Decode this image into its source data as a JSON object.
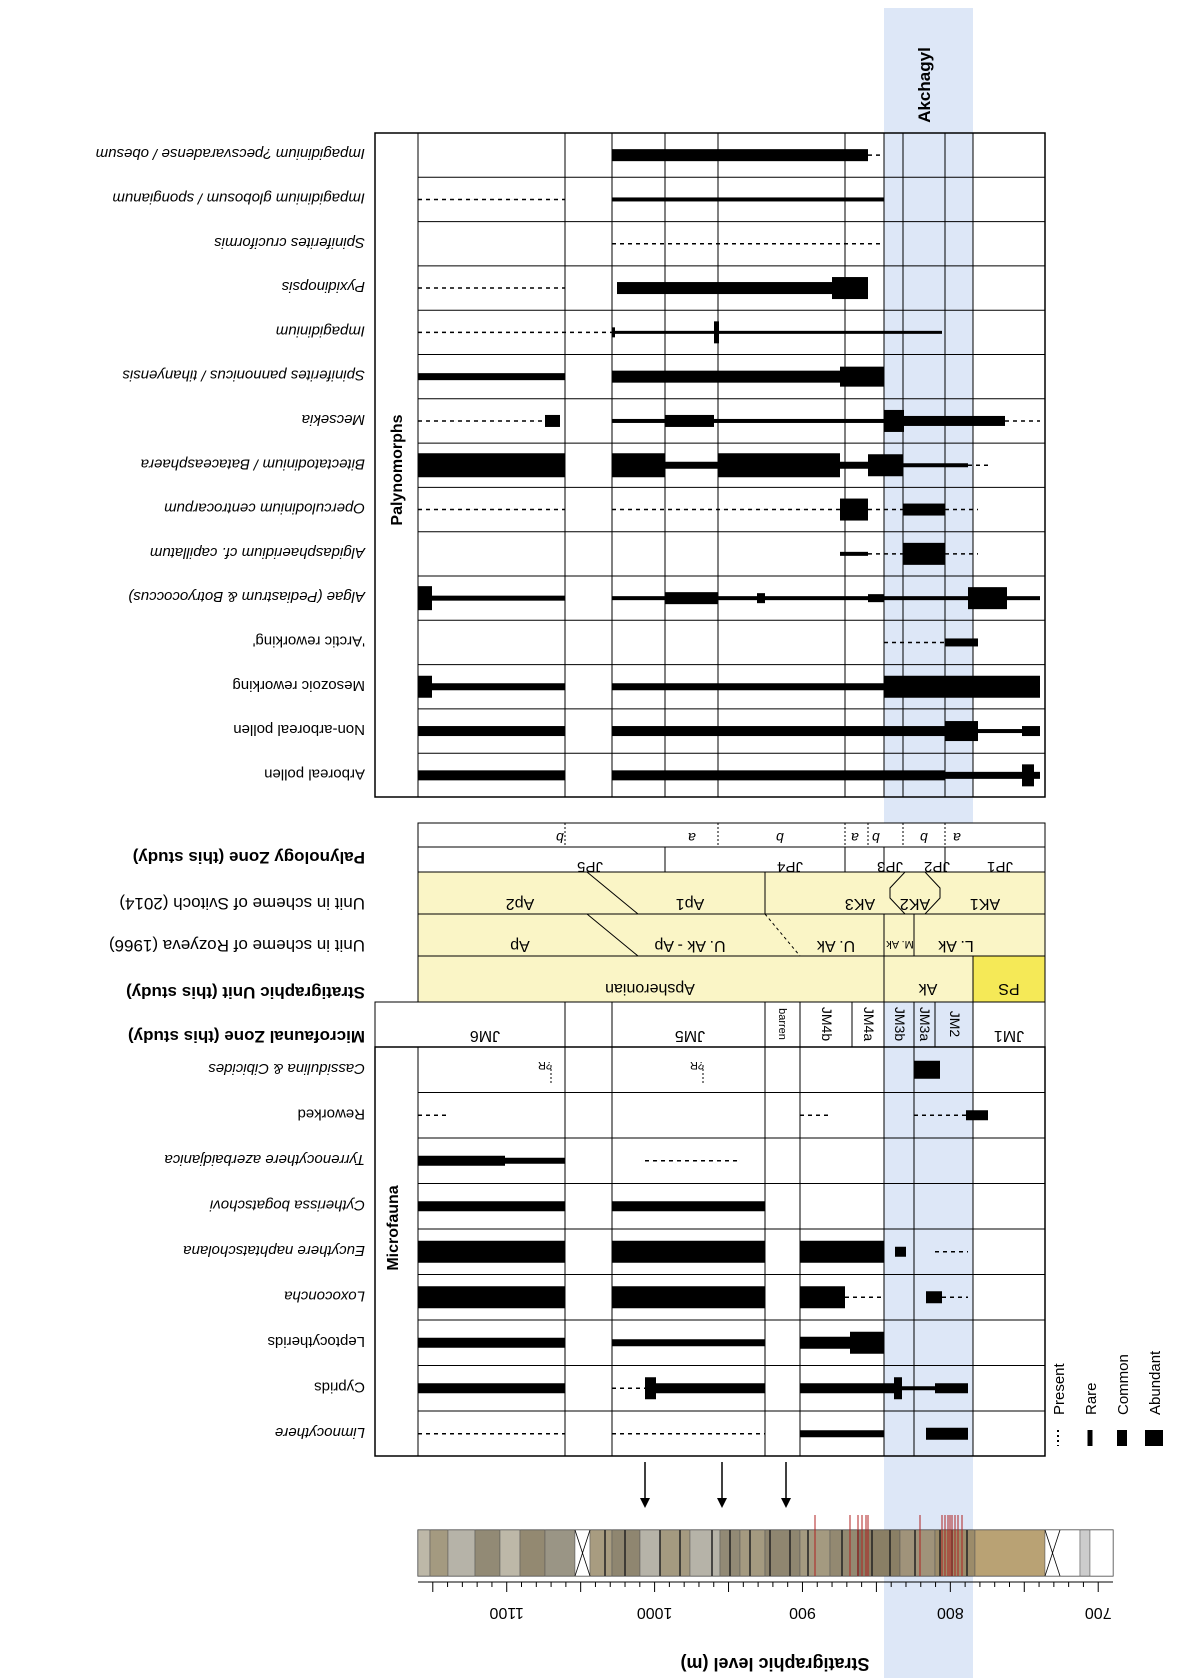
{
  "chart_data": {
    "type": "range-chart",
    "highlight_label": "Akchagyl",
    "axis": {
      "title": "Stratigraphic level (m)",
      "range": [
        1160,
        690
      ],
      "ticks": [
        1100,
        1000,
        900,
        800,
        700
      ]
    },
    "section_headers": {
      "palynomorphs": "Palynomorphs",
      "microfauna": "Microfauna"
    },
    "palynomorph_taxa": [
      "Impagidinium ?pecsvaradense / obesum",
      "Impagidinium globosum / spongianum",
      "Spiniferites cruciformis",
      "Pyxidinopsis",
      "Impagidinium",
      "Spiniferites pannonicus / tihanyensis",
      "Mecsekia",
      "Bitectatodinium / Bataceasphaera",
      "Operculodinium centrocarpum",
      "Algidasphaeridium cf. capillatum",
      "Algae (Pediastrum & Botryococcus)",
      "'Arctic reworking'",
      "Mesozoic reworking",
      "Non-arboreal pollen",
      "Arboreal pollen"
    ],
    "zone_headers": [
      "Palynology Zone (this study)",
      "Unit in scheme of Svitoch (2014)",
      "Unit in scheme of Rozyeva (1966)",
      "Stratigraphic Unit (this study)",
      "Microfaunal Zone (this study)"
    ],
    "palynology_zones": [
      "JP5",
      "JP4",
      "JP3",
      "JP2",
      "JP1"
    ],
    "palynology_subzones": [
      "b",
      "a",
      "b",
      "a",
      "b",
      "b",
      "a"
    ],
    "svitoch_units": [
      "Ap2",
      "Ap1",
      "AK3",
      "AK2",
      "AK1"
    ],
    "rozyeva_units": [
      "Ap",
      "U. Ak - Ap",
      "U. Ak",
      "M. Ak",
      "L. Ak"
    ],
    "strat_units": [
      "Apsheronian",
      "Ak",
      "PS"
    ],
    "microfaunal_zones": [
      "JM6",
      "JM5",
      "barren",
      "JM4b",
      "JM4a",
      "JM3b",
      "JM3a",
      "JM2",
      "JM1"
    ],
    "microfauna_taxa": [
      "Cassidulina & Cibicides",
      "Reworked",
      "Tyrrenocythere azerbaidjanica",
      "Cytherissa bogatschovi",
      "Eucythere naphtatscholana",
      "Loxoconcha",
      "Leptocytherids",
      "Cyprids",
      "Limnocythere"
    ],
    "r_marks": [
      "?R",
      "?R"
    ],
    "legend": [
      "Present",
      "Rare",
      "Common",
      "Abundant"
    ]
  }
}
